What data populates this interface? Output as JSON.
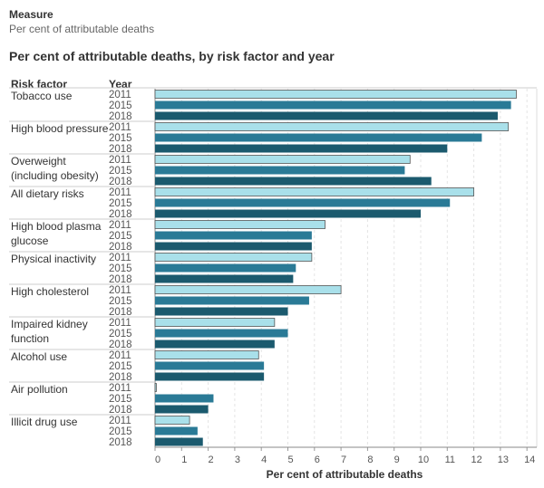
{
  "header": {
    "measure_label": "Measure",
    "measure_value": "Per cent of attributable deaths"
  },
  "chart_data": {
    "type": "bar",
    "orientation": "horizontal",
    "title": "Per cent of attributable deaths, by risk factor and year",
    "row_headers": [
      "Risk factor",
      "Year"
    ],
    "xlabel": "Per cent of attributable deaths",
    "xlim": [
      0,
      14
    ],
    "xticks": [
      "0",
      "1",
      "2",
      "3",
      "4",
      "5",
      "6",
      "7",
      "8",
      "9",
      "10",
      "11",
      "12",
      "13",
      "14"
    ],
    "grid": true,
    "years": [
      "2011",
      "2015",
      "2018"
    ],
    "colors": {
      "2011": "#a9e0ea",
      "2015": "#2a7a96",
      "2018": "#1b5a6e"
    },
    "categories": [
      {
        "name": "Tobacco use",
        "values": [
          13.6,
          13.4,
          12.9
        ]
      },
      {
        "name": "High blood pressure",
        "values": [
          13.3,
          12.3,
          11.0
        ]
      },
      {
        "name": "Overweight\n(including obesity)",
        "values": [
          9.6,
          9.4,
          10.4
        ]
      },
      {
        "name": "All dietary risks",
        "values": [
          12.0,
          11.1,
          10.0
        ]
      },
      {
        "name": "High blood plasma\nglucose",
        "values": [
          6.4,
          5.9,
          5.9
        ]
      },
      {
        "name": "Physical inactivity",
        "values": [
          5.9,
          5.3,
          5.2
        ]
      },
      {
        "name": "High cholesterol",
        "values": [
          7.0,
          5.8,
          5.0
        ]
      },
      {
        "name": "Impaired kidney\nfunction",
        "values": [
          4.5,
          5.0,
          4.5
        ]
      },
      {
        "name": "Alcohol use",
        "values": [
          3.9,
          4.1,
          4.1
        ]
      },
      {
        "name": "Air pollution",
        "values": [
          0.05,
          2.2,
          2.0
        ]
      },
      {
        "name": "Illicit drug use",
        "values": [
          1.3,
          1.6,
          1.8
        ]
      }
    ]
  }
}
